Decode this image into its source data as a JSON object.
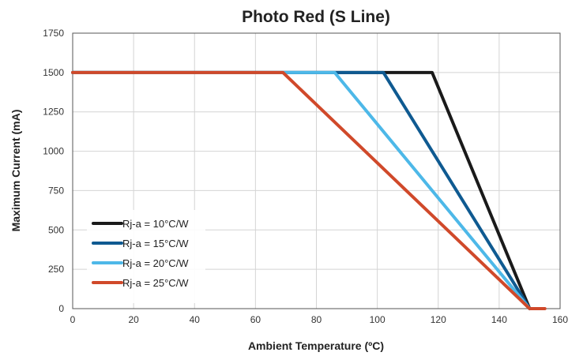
{
  "chart_data": {
    "type": "line",
    "title": "Photo Red (S Line)",
    "xlabel": "Ambient Temperature (ºC)",
    "ylabel": "Maximum Current (mA)",
    "xlim": [
      0,
      160
    ],
    "ylim": [
      0,
      1750
    ],
    "xticks": [
      0,
      20,
      40,
      60,
      80,
      100,
      120,
      140,
      160
    ],
    "yticks": [
      0,
      250,
      500,
      750,
      1000,
      1250,
      1500,
      1750
    ],
    "grid": true,
    "legend_position": "bottom-left",
    "series": [
      {
        "name": "Rj-a = 10°C/W",
        "color": "#1a1a1a",
        "x": [
          0,
          118,
          150
        ],
        "y": [
          1500,
          1500,
          0
        ]
      },
      {
        "name": "Rj-a = 15°C/W",
        "color": "#0f5a91",
        "x": [
          0,
          102,
          150
        ],
        "y": [
          1500,
          1500,
          0
        ]
      },
      {
        "name": "Rj-a = 20°C/W",
        "color": "#4db8e8",
        "x": [
          0,
          86,
          150
        ],
        "y": [
          1500,
          1500,
          0
        ]
      },
      {
        "name": "Rj-a = 25°C/W",
        "color": "#d0492a",
        "x": [
          0,
          69,
          150,
          155
        ],
        "y": [
          1500,
          1500,
          0,
          0
        ]
      }
    ]
  }
}
